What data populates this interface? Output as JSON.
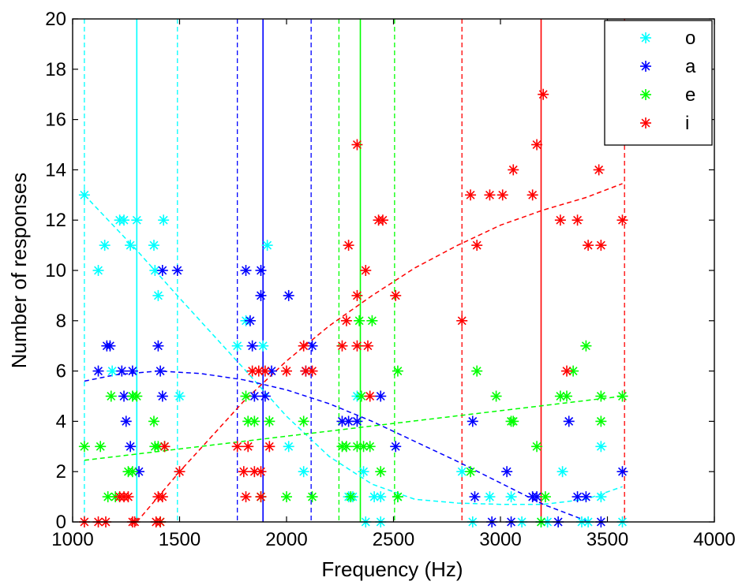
{
  "chart_data": {
    "type": "scatter",
    "title": "",
    "xlabel": "Frequency (Hz)",
    "ylabel": "Number of responses",
    "xlim": [
      1000,
      4000
    ],
    "ylim": [
      0,
      20
    ],
    "xticks": [
      1000,
      1500,
      2000,
      2500,
      3000,
      3500,
      4000
    ],
    "yticks": [
      0,
      2,
      4,
      6,
      8,
      10,
      12,
      14,
      16,
      18,
      20
    ],
    "grid": false,
    "legend_position": "top-right",
    "marker": "asterisk",
    "series": [
      {
        "name": "o",
        "color": "#00ffff",
        "points": [
          [
            1055,
            13
          ],
          [
            1120,
            10
          ],
          [
            1150,
            11
          ],
          [
            1185,
            6
          ],
          [
            1220,
            12
          ],
          [
            1240,
            12
          ],
          [
            1270,
            11
          ],
          [
            1280,
            5
          ],
          [
            1300,
            12
          ],
          [
            1380,
            11
          ],
          [
            1385,
            10
          ],
          [
            1400,
            9
          ],
          [
            1425,
            12
          ],
          [
            1500,
            5
          ],
          [
            1770,
            7
          ],
          [
            1810,
            8
          ],
          [
            1890,
            7
          ],
          [
            1910,
            11
          ],
          [
            2010,
            3
          ],
          [
            2080,
            2
          ],
          [
            2290,
            1
          ],
          [
            2310,
            1
          ],
          [
            2330,
            5
          ],
          [
            2360,
            2
          ],
          [
            2410,
            1
          ],
          [
            2440,
            1
          ],
          [
            2370,
            0
          ],
          [
            2440,
            0
          ],
          [
            2520,
            1
          ],
          [
            2820,
            2
          ],
          [
            2870,
            0
          ],
          [
            2950,
            1
          ],
          [
            3050,
            1
          ],
          [
            3100,
            0
          ],
          [
            3190,
            0
          ],
          [
            3220,
            0
          ],
          [
            3290,
            2
          ],
          [
            3380,
            0
          ],
          [
            3410,
            0
          ],
          [
            3470,
            3
          ],
          [
            3470,
            1
          ],
          [
            3570,
            0
          ]
        ],
        "fit": [
          [
            1055,
            13
          ],
          [
            1300,
            10.8
          ],
          [
            1500,
            8.9
          ],
          [
            1800,
            6.1
          ],
          [
            2000,
            4.2
          ],
          [
            2200,
            2.6
          ],
          [
            2400,
            1.5
          ],
          [
            2600,
            0.9
          ],
          [
            2800,
            0.75
          ],
          [
            3000,
            0.7
          ],
          [
            3200,
            0.7
          ],
          [
            3400,
            0.9
          ],
          [
            3570,
            1.4
          ]
        ],
        "markers": {
          "center": 1300,
          "lower": 1055,
          "upper": 1490
        }
      },
      {
        "name": "a",
        "color": "#0000ff",
        "points": [
          [
            1120,
            6
          ],
          [
            1160,
            7
          ],
          [
            1175,
            7
          ],
          [
            1230,
            6
          ],
          [
            1240,
            5
          ],
          [
            1250,
            4
          ],
          [
            1270,
            3
          ],
          [
            1280,
            6
          ],
          [
            1310,
            2
          ],
          [
            1400,
            7
          ],
          [
            1410,
            6
          ],
          [
            1420,
            10
          ],
          [
            1420,
            5
          ],
          [
            1490,
            10
          ],
          [
            1810,
            10
          ],
          [
            1830,
            8
          ],
          [
            1840,
            7
          ],
          [
            1850,
            5
          ],
          [
            1880,
            10
          ],
          [
            1880,
            9
          ],
          [
            1900,
            5
          ],
          [
            1930,
            6
          ],
          [
            2010,
            9
          ],
          [
            2090,
            6
          ],
          [
            2120,
            7
          ],
          [
            2260,
            4
          ],
          [
            2290,
            4
          ],
          [
            2330,
            4
          ],
          [
            2440,
            5
          ],
          [
            2510,
            3
          ],
          [
            2870,
            4
          ],
          [
            2880,
            1
          ],
          [
            2960,
            0
          ],
          [
            3030,
            2
          ],
          [
            3050,
            0
          ],
          [
            3150,
            1
          ],
          [
            3170,
            1
          ],
          [
            3270,
            0
          ],
          [
            3320,
            4
          ],
          [
            3360,
            1
          ],
          [
            3400,
            1
          ],
          [
            3470,
            0
          ],
          [
            3570,
            2
          ]
        ],
        "fit": [
          [
            1055,
            5.6
          ],
          [
            1200,
            5.85
          ],
          [
            1400,
            6.0
          ],
          [
            1600,
            5.9
          ],
          [
            1800,
            5.65
          ],
          [
            2000,
            5.25
          ],
          [
            2200,
            4.7
          ],
          [
            2400,
            4.0
          ],
          [
            2600,
            3.2
          ],
          [
            2800,
            2.4
          ],
          [
            3000,
            1.55
          ],
          [
            3200,
            0.7
          ],
          [
            3400,
            0.05
          ]
        ],
        "markers": {
          "center": 1890,
          "lower": 1770,
          "upper": 2115
        }
      },
      {
        "name": "e",
        "color": "#00ff00",
        "points": [
          [
            1055,
            3
          ],
          [
            1130,
            3
          ],
          [
            1165,
            1
          ],
          [
            1180,
            5
          ],
          [
            1200,
            1
          ],
          [
            1260,
            2
          ],
          [
            1280,
            2
          ],
          [
            1280,
            5
          ],
          [
            1300,
            5
          ],
          [
            1380,
            4
          ],
          [
            1385,
            3
          ],
          [
            1400,
            3
          ],
          [
            1410,
            0
          ],
          [
            1430,
            3
          ],
          [
            1810,
            5
          ],
          [
            1820,
            4
          ],
          [
            1850,
            4
          ],
          [
            1880,
            1
          ],
          [
            1920,
            4
          ],
          [
            2000,
            1
          ],
          [
            2080,
            4
          ],
          [
            2120,
            1
          ],
          [
            2260,
            3
          ],
          [
            2280,
            3
          ],
          [
            2300,
            1
          ],
          [
            2330,
            3
          ],
          [
            2340,
            8
          ],
          [
            2350,
            5
          ],
          [
            2360,
            3
          ],
          [
            2390,
            3
          ],
          [
            2400,
            8
          ],
          [
            2440,
            2
          ],
          [
            2520,
            6
          ],
          [
            2520,
            1
          ],
          [
            2860,
            2
          ],
          [
            2890,
            6
          ],
          [
            2980,
            5
          ],
          [
            3050,
            4
          ],
          [
            3060,
            4
          ],
          [
            3170,
            3
          ],
          [
            3190,
            0
          ],
          [
            3210,
            1
          ],
          [
            3280,
            5
          ],
          [
            3310,
            5
          ],
          [
            3340,
            6
          ],
          [
            3400,
            7
          ],
          [
            3470,
            5
          ],
          [
            3470,
            4
          ],
          [
            3570,
            5
          ]
        ],
        "fit": [
          [
            1055,
            2.45
          ],
          [
            3570,
            5.0
          ]
        ],
        "markers": {
          "center": 2345,
          "lower": 2245,
          "upper": 2505
        }
      },
      {
        "name": "i",
        "color": "#ff0000",
        "points": [
          [
            1055,
            0
          ],
          [
            1120,
            0
          ],
          [
            1155,
            0
          ],
          [
            1220,
            1
          ],
          [
            1240,
            1
          ],
          [
            1260,
            1
          ],
          [
            1280,
            0
          ],
          [
            1290,
            0
          ],
          [
            1390,
            0
          ],
          [
            1400,
            1
          ],
          [
            1410,
            0
          ],
          [
            1420,
            1
          ],
          [
            1430,
            3
          ],
          [
            1500,
            2
          ],
          [
            1770,
            3
          ],
          [
            1800,
            2
          ],
          [
            1810,
            1
          ],
          [
            1820,
            3
          ],
          [
            1840,
            6
          ],
          [
            1850,
            2
          ],
          [
            1870,
            6
          ],
          [
            1880,
            1
          ],
          [
            1880,
            2
          ],
          [
            1900,
            6
          ],
          [
            1920,
            3
          ],
          [
            2000,
            6
          ],
          [
            2080,
            7
          ],
          [
            2090,
            6
          ],
          [
            2120,
            6
          ],
          [
            2260,
            7
          ],
          [
            2280,
            8
          ],
          [
            2290,
            11
          ],
          [
            2330,
            15
          ],
          [
            2330,
            9
          ],
          [
            2330,
            7
          ],
          [
            2370,
            10
          ],
          [
            2380,
            7
          ],
          [
            2390,
            5
          ],
          [
            2430,
            12
          ],
          [
            2450,
            12
          ],
          [
            2510,
            9
          ],
          [
            2820,
            8
          ],
          [
            2860,
            13
          ],
          [
            2890,
            11
          ],
          [
            2950,
            13
          ],
          [
            3010,
            13
          ],
          [
            3060,
            14
          ],
          [
            3150,
            13
          ],
          [
            3170,
            15
          ],
          [
            3200,
            17
          ],
          [
            3280,
            12
          ],
          [
            3310,
            6
          ],
          [
            3360,
            12
          ],
          [
            3410,
            11
          ],
          [
            3460,
            14
          ],
          [
            3470,
            11
          ],
          [
            3570,
            12
          ]
        ],
        "fit": [
          [
            1300,
            0
          ],
          [
            1500,
            2.0
          ],
          [
            1800,
            4.8
          ],
          [
            2000,
            6.4
          ],
          [
            2200,
            7.8
          ],
          [
            2400,
            9.0
          ],
          [
            2600,
            10.1
          ],
          [
            2800,
            11.0
          ],
          [
            3000,
            11.8
          ],
          [
            3200,
            12.4
          ],
          [
            3400,
            12.9
          ],
          [
            3570,
            13.45
          ]
        ],
        "markers": {
          "center": 3190,
          "lower": 2820,
          "upper": 3580
        }
      }
    ]
  }
}
